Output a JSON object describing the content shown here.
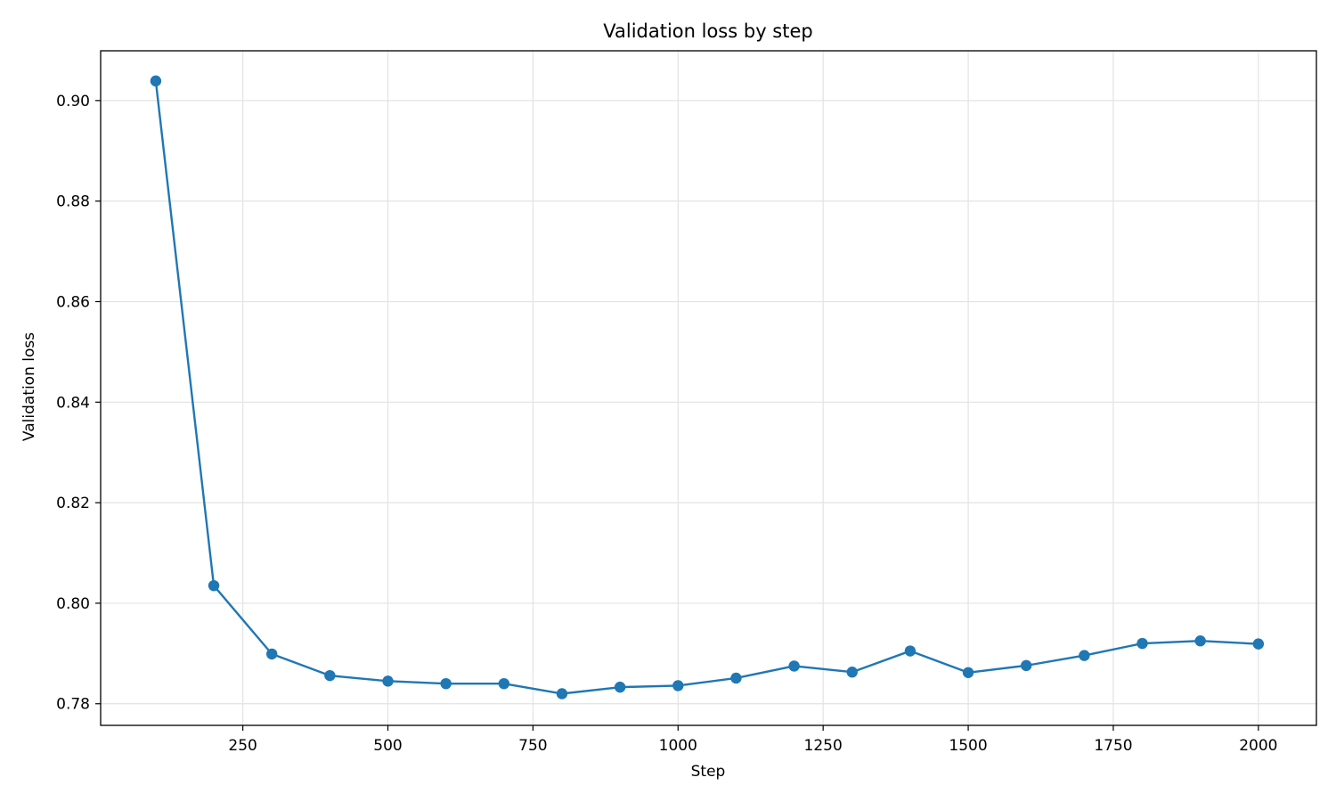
{
  "chart_data": {
    "type": "line",
    "title": "Validation loss by step",
    "xlabel": "Step",
    "ylabel": "Validation loss",
    "xlim": [
      5,
      2100
    ],
    "ylim": [
      0.7757,
      0.9099
    ],
    "x_ticks": [
      250,
      500,
      750,
      1000,
      1250,
      1500,
      1750,
      2000
    ],
    "x_tick_labels": [
      "250",
      "500",
      "750",
      "1000",
      "1250",
      "1500",
      "1750",
      "2000"
    ],
    "y_ticks": [
      0.78,
      0.8,
      0.82,
      0.84,
      0.86,
      0.88,
      0.9
    ],
    "y_tick_labels": [
      "0.78",
      "0.80",
      "0.82",
      "0.84",
      "0.86",
      "0.88",
      "0.90"
    ],
    "grid": true,
    "legend": "none",
    "series": [
      {
        "color": "#1f77b4",
        "marker": "circle",
        "x": [
          100,
          200,
          300,
          400,
          500,
          600,
          700,
          800,
          900,
          1000,
          1100,
          1200,
          1300,
          1400,
          1500,
          1600,
          1700,
          1800,
          1900,
          2000
        ],
        "y": [
          0.9039,
          0.8035,
          0.7899,
          0.7856,
          0.7845,
          0.784,
          0.784,
          0.782,
          0.7833,
          0.7836,
          0.7851,
          0.7875,
          0.7863,
          0.7905,
          0.7862,
          0.7876,
          0.7896,
          0.792,
          0.7925,
          0.7919
        ]
      }
    ]
  }
}
